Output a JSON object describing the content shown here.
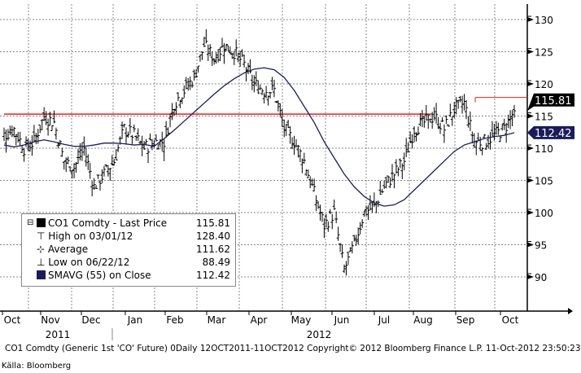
{
  "chart_data": {
    "type": "ohlc",
    "title": "CO1 Comdty (Generic 1st 'CO' Future) Daily",
    "frequency": "weekly approximations of daily bars",
    "ylim": [
      85,
      132
    ],
    "yticks": [
      90,
      95,
      100,
      105,
      110,
      115,
      120,
      125,
      130
    ],
    "xticks": [
      "Oct",
      "Nov",
      "Dec",
      "Jan",
      "Feb",
      "Mar",
      "Apr",
      "May",
      "Jun",
      "Jul",
      "Aug",
      "Sep",
      "Oct"
    ],
    "years": [
      "2011",
      "2012"
    ],
    "grid": true,
    "legend_position": "bottom-left",
    "series": [
      {
        "name": "CO1 Comdty - Last Price",
        "values": [
          112,
          113,
          110,
          111,
          115,
          114,
          108,
          107,
          110,
          104,
          106,
          108,
          113,
          112,
          110,
          111,
          111,
          117,
          119,
          121,
          126,
          124,
          126,
          125,
          123,
          120,
          119,
          119,
          113,
          111,
          108,
          103,
          98,
          100,
          91,
          95,
          100,
          101,
          104,
          106,
          108,
          113,
          114,
          115,
          113,
          116,
          117,
          111,
          111,
          112,
          113,
          115.81
        ]
      },
      {
        "name": "SMAVG (55) on Close",
        "values": [
          110.5,
          110.2,
          110.5,
          111,
          111.3,
          111,
          110.6,
          110.3,
          110.3,
          110.5,
          110.8,
          110.8,
          110.7,
          110.5,
          110.6,
          110.3,
          111.5,
          112.8,
          114.2,
          115.6,
          117,
          118.4,
          119.7,
          120.8,
          121.7,
          122.3,
          122.5,
          122.2,
          121,
          119,
          116.5,
          114,
          111,
          108.5,
          106,
          104,
          102.5,
          101.5,
          101,
          101.2,
          102,
          103.5,
          105,
          106.5,
          108,
          109.5,
          110.5,
          111,
          111.5,
          111.8,
          112,
          112.42
        ]
      }
    ],
    "reference_lines": [
      {
        "value": 115.3,
        "color": "#e8201c"
      },
      {
        "value": 117.9,
        "color": "#e8201c"
      }
    ],
    "last_price_tag": "115.81",
    "sma_tag": "112.42"
  },
  "legend": {
    "rows": [
      {
        "label": "CO1 Comdty - Last Price",
        "value": "115.81"
      },
      {
        "label": "High on 03/01/12",
        "value": "128.40"
      },
      {
        "label": "Average",
        "value": "111.62"
      },
      {
        "label": "Low on 06/22/12",
        "value": "88.49"
      },
      {
        "label": "SMAVG (55) on Close",
        "value": "112.42"
      }
    ]
  },
  "footer": "CO1 Comdty (Generic 1st 'CO' Future) 0Daily 12OCT2011-11OCT2012  Copyright© 2012 Bloomberg Finance L.P.  11-Oct-2012 23:50:23",
  "source": "Källa: Bloomberg",
  "colors": {
    "price": "#000000",
    "sma": "#1c1c5a",
    "ref": "#e8201c"
  }
}
